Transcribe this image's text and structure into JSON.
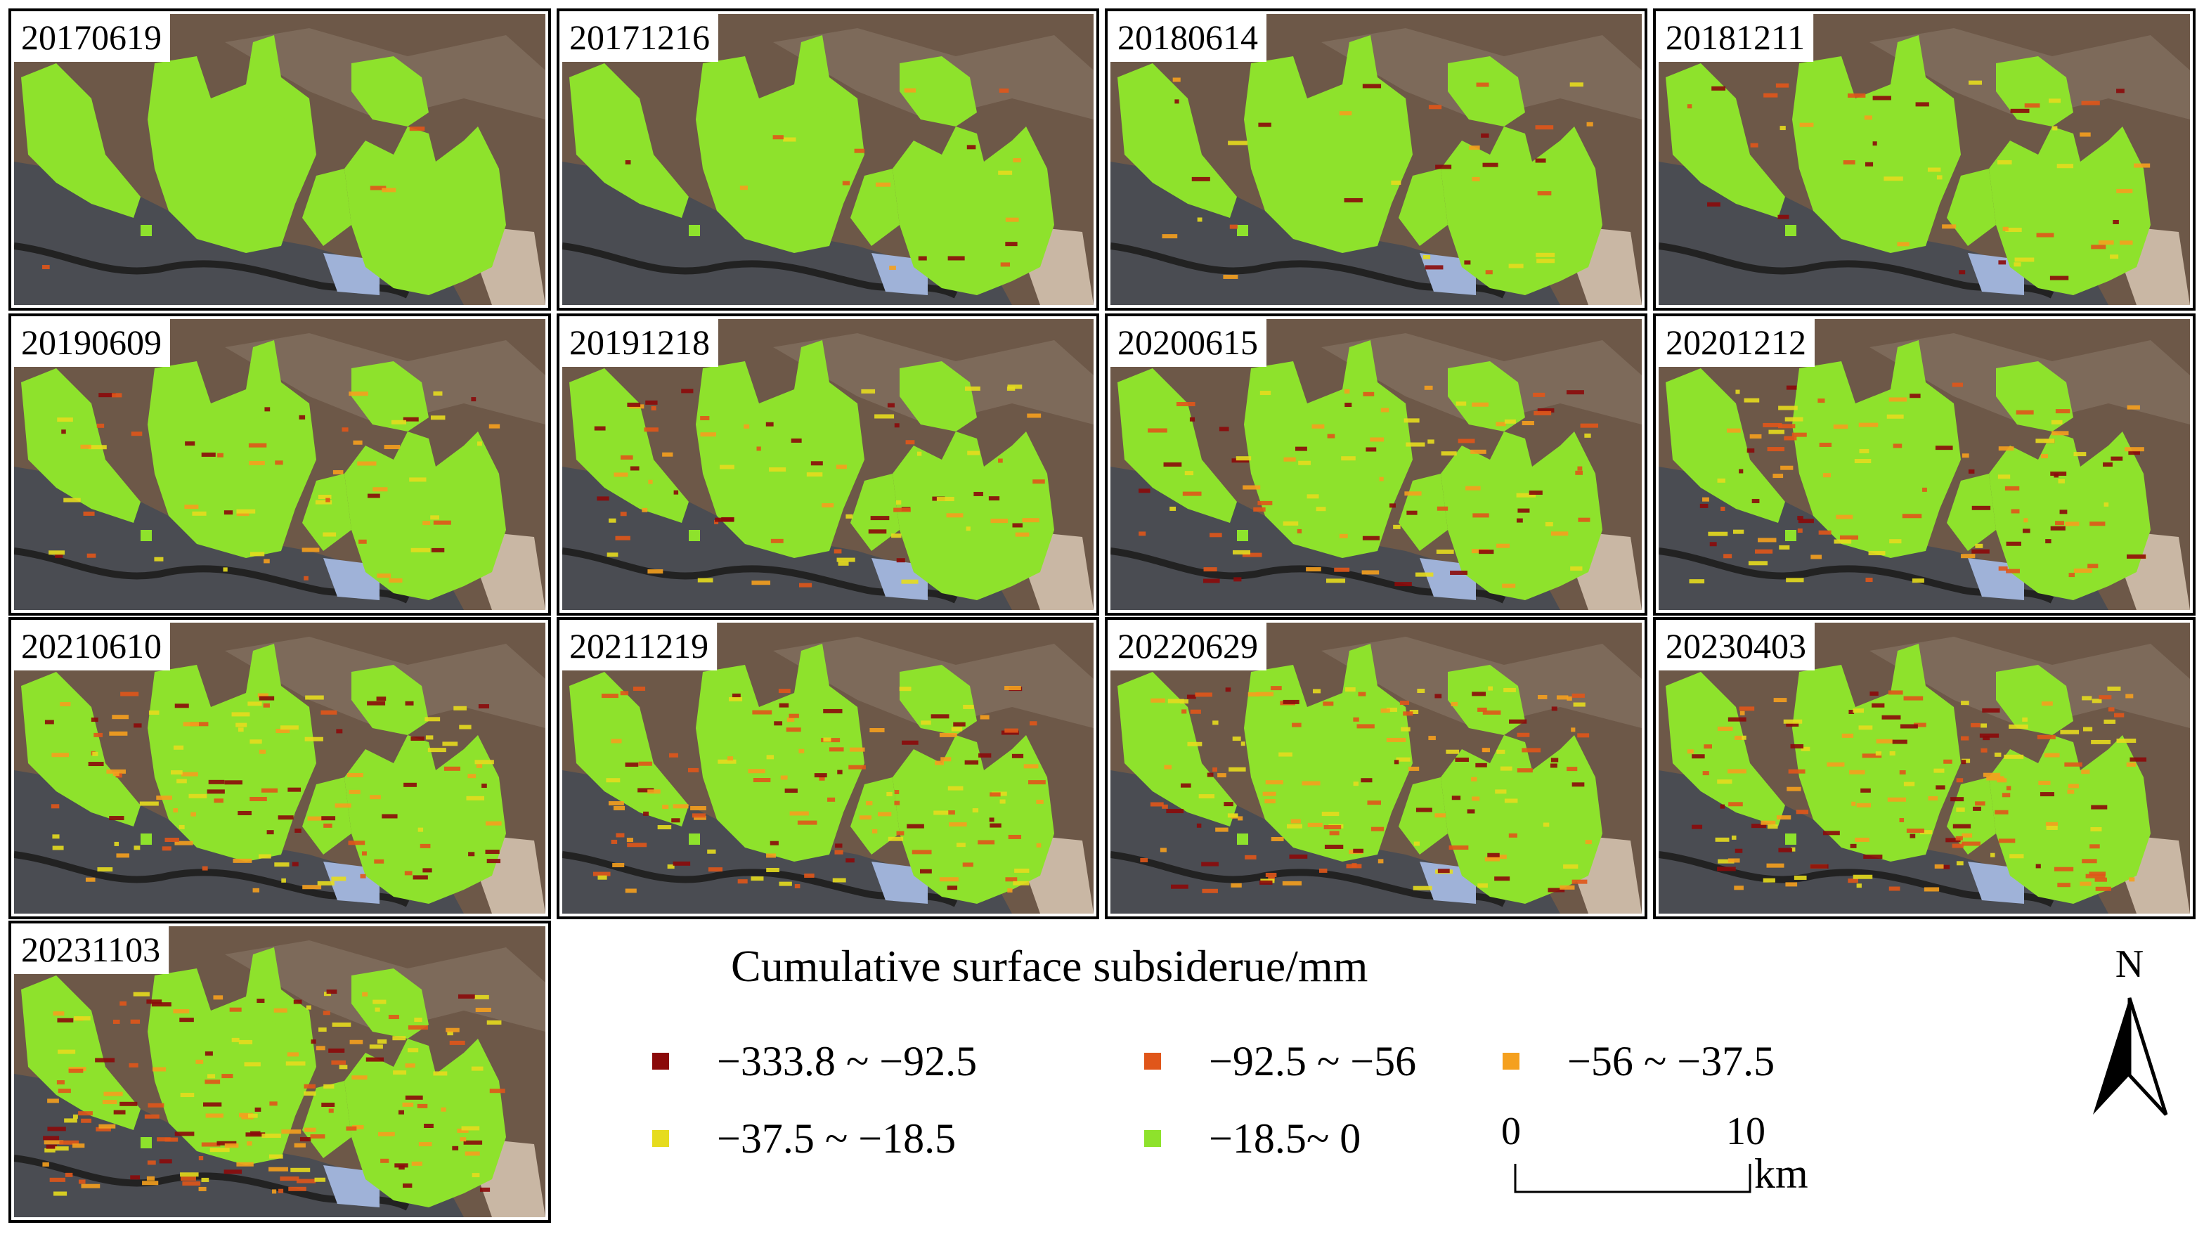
{
  "panels": [
    {
      "label": "20170619"
    },
    {
      "label": "20171216"
    },
    {
      "label": "20180614"
    },
    {
      "label": "20181211"
    },
    {
      "label": "20190609"
    },
    {
      "label": "20191218"
    },
    {
      "label": "20200615"
    },
    {
      "label": "20201212"
    },
    {
      "label": "20210610"
    },
    {
      "label": "20211219"
    },
    {
      "label": "20220629"
    },
    {
      "label": "20230403"
    },
    {
      "label": "20231103"
    }
  ],
  "legend": {
    "title": "Cumulative surface subsiderue/mm",
    "items": [
      {
        "label": "−333.8 ~ −92.5",
        "color": "#8b0a0a"
      },
      {
        "label": "−92.5 ~ −56",
        "color": "#e0561a"
      },
      {
        "label": "−56 ~ −37.5",
        "color": "#f5a01e"
      },
      {
        "label": "−37.5 ~ −18.5",
        "color": "#e6dc1e"
      },
      {
        "label": "−18.5~ 0",
        "color": "#8ee22c"
      }
    ]
  },
  "scale_bar": {
    "start": "0",
    "end": "10",
    "unit": "km"
  },
  "north_arrow": {
    "label": "N"
  }
}
